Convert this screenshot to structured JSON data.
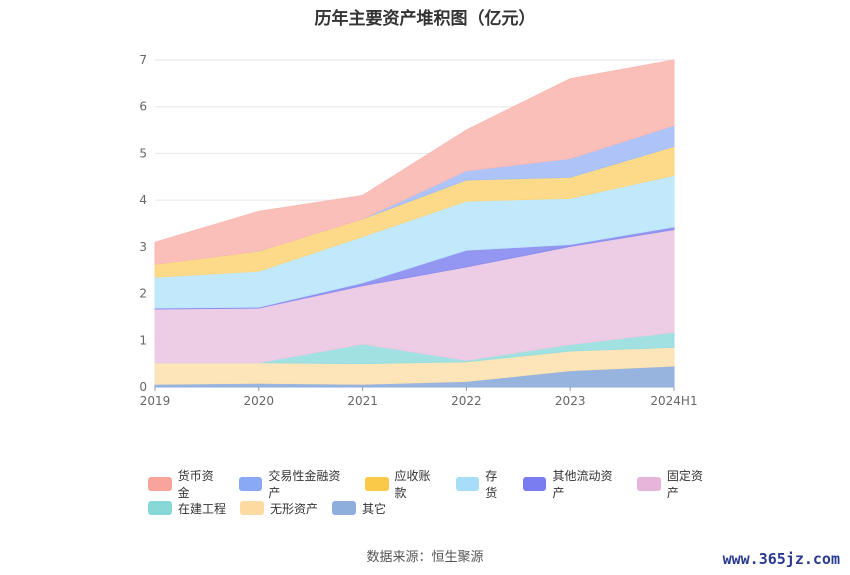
{
  "source_text": "数据来源：恒生聚源",
  "watermark": "www.365jz.com",
  "chart_data": {
    "type": "area",
    "stacked": true,
    "title": "历年主要资产堆积图（亿元）",
    "x": [
      "2019",
      "2020",
      "2021",
      "2022",
      "2023",
      "2024H1"
    ],
    "ylim": [
      0,
      7
    ],
    "yticks": [
      0,
      1,
      2,
      3,
      4,
      5,
      6,
      7
    ],
    "grid": true,
    "legend_position": "bottom",
    "series": [
      {
        "name": "其它",
        "color": "#8eaedc",
        "values": [
          0.06,
          0.08,
          0.06,
          0.12,
          0.35,
          0.45
        ]
      },
      {
        "name": "无形资产",
        "color": "#fde3b3",
        "values": [
          0.46,
          0.44,
          0.44,
          0.42,
          0.42,
          0.4
        ]
      },
      {
        "name": "在建工程",
        "color": "#99dede",
        "values": [
          0.0,
          0.0,
          0.42,
          0.03,
          0.14,
          0.32
        ]
      },
      {
        "name": "固定资产",
        "color": "#ecc9e3",
        "values": [
          1.15,
          1.17,
          1.25,
          2.0,
          2.1,
          2.2
        ]
      },
      {
        "name": "其他流动资产",
        "color": "#8a8ef0",
        "values": [
          0.02,
          0.02,
          0.06,
          0.36,
          0.04,
          0.06
        ]
      },
      {
        "name": "存货",
        "color": "#bde6fb",
        "values": [
          0.66,
          0.77,
          0.99,
          1.05,
          0.99,
          1.1
        ]
      },
      {
        "name": "应收账款",
        "color": "#fcd77f",
        "values": [
          0.28,
          0.43,
          0.38,
          0.45,
          0.45,
          0.62
        ]
      },
      {
        "name": "交易性金融资产",
        "color": "#a7bff7",
        "values": [
          0.0,
          0.0,
          0.0,
          0.2,
          0.4,
          0.45
        ]
      },
      {
        "name": "货币资金",
        "color": "#fbbab4",
        "values": [
          0.47,
          0.85,
          0.5,
          0.87,
          1.71,
          1.4
        ]
      }
    ],
    "legend_order": [
      "货币资金",
      "交易性金融资产",
      "应收账款",
      "存货",
      "其他流动资产",
      "固定资产",
      "在建工程",
      "无形资产",
      "其它"
    ],
    "legend_colors": {
      "货币资金": "#f7a49c",
      "交易性金融资产": "#89a9f4",
      "应收账款": "#fbc948",
      "存货": "#a8ddfa",
      "其他流动资产": "#7a7df0",
      "固定资产": "#e6b5d9",
      "在建工程": "#88d8d8",
      "无形资产": "#fddaa0",
      "其它": "#8eaedc"
    }
  }
}
